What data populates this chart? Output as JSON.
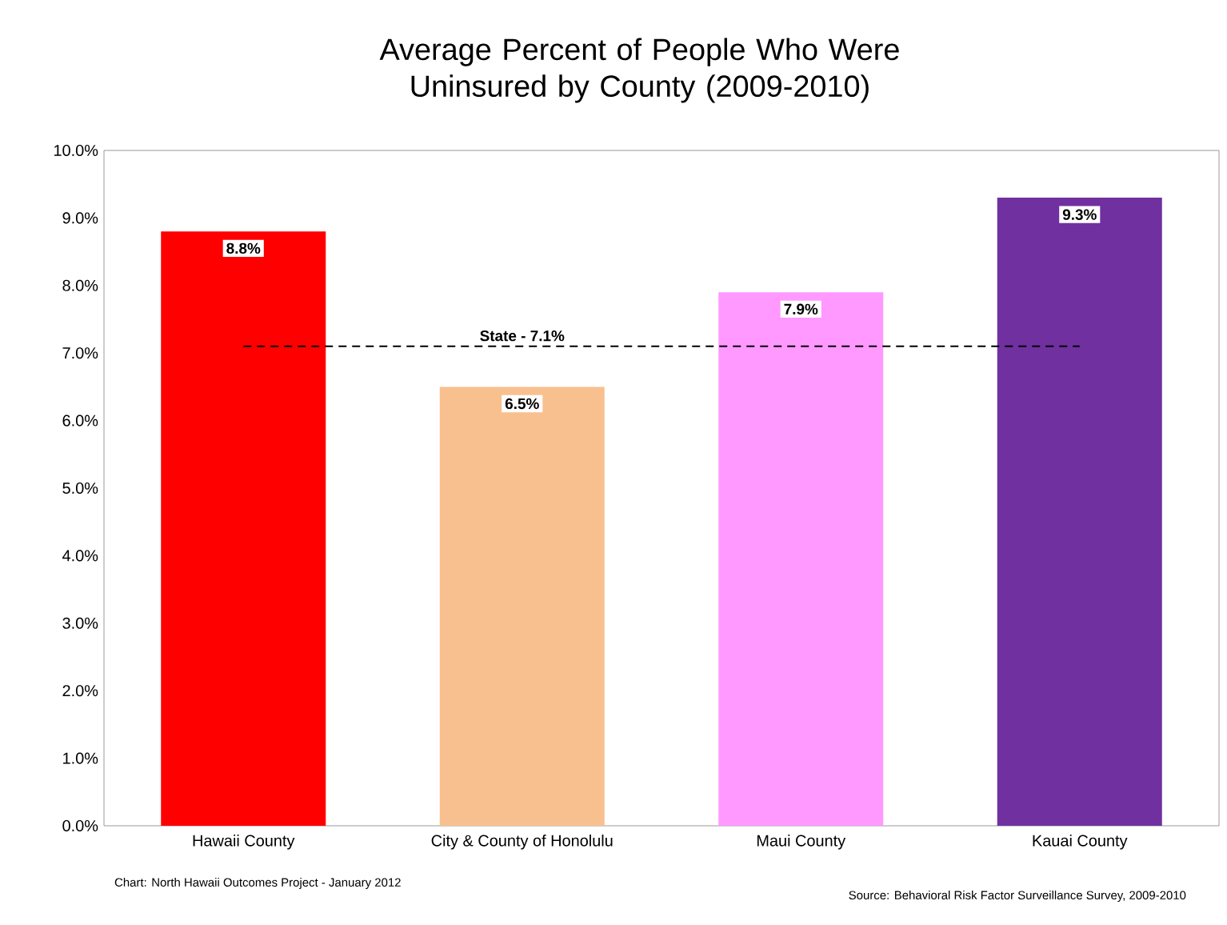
{
  "chart_data": {
    "type": "bar",
    "title": "Average Percent of People Who Were Uninsured by County (2009-2010)",
    "categories": [
      "Hawaii County",
      "City & County of Honolulu",
      "Maui County",
      "Kauai County"
    ],
    "values": [
      8.8,
      6.5,
      7.9,
      9.3
    ],
    "colors": [
      "#ff0000",
      "#f9c08f",
      "#ff99ff",
      "#7030a0"
    ],
    "value_labels": [
      "8.8%",
      "6.5%",
      "7.9%",
      "9.3%"
    ],
    "ylim": [
      0,
      10
    ],
    "yticks": [
      {
        "value": 0,
        "label": "0.0%"
      },
      {
        "value": 1,
        "label": "1.0%"
      },
      {
        "value": 2,
        "label": "2.0%"
      },
      {
        "value": 3,
        "label": "3.0%"
      },
      {
        "value": 4,
        "label": "4.0%"
      },
      {
        "value": 5,
        "label": "5.0%"
      },
      {
        "value": 6,
        "label": "6.0%"
      },
      {
        "value": 7,
        "label": "7.0%"
      },
      {
        "value": 8,
        "label": "8.0%"
      },
      {
        "value": 9,
        "label": "9.0%"
      },
      {
        "value": 10,
        "label": "10.0%"
      }
    ],
    "ref_lines": [
      {
        "axis": "y",
        "value": 7.1,
        "label": "State - 7.1%",
        "color": "#000000",
        "line_style": "dashed"
      }
    ],
    "grid": false,
    "annotations": [
      "Chart: North Hawaii Outcomes Project - January 2012",
      "Source:  Behavioral Risk Factor Surveillance Survey, 2009-2010"
    ]
  }
}
